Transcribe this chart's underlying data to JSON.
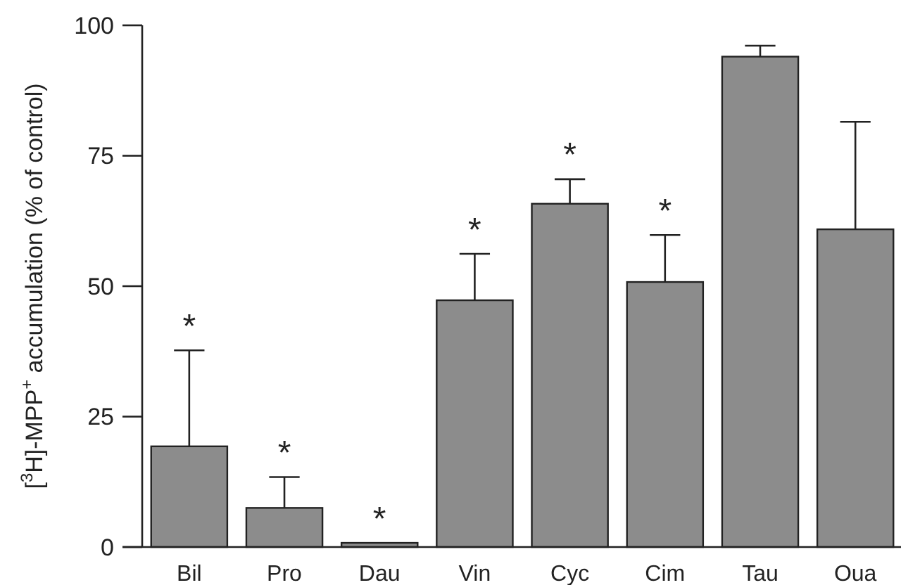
{
  "chart_data": {
    "type": "bar",
    "ylabel": "[$^{3}$H]-MPP$^{+}$ accumulation (% of control)",
    "categories": [
      "Bil",
      "Pro",
      "Dau",
      "Vin",
      "Cyc",
      "Cim",
      "Tau",
      "Oua"
    ],
    "values": [
      19.3,
      7.5,
      0.8,
      47.3,
      65.8,
      50.8,
      94.0,
      60.9
    ],
    "errors": [
      [
        19.3,
        37.7
      ],
      [
        7.5,
        13.4
      ],
      null,
      [
        47.3,
        56.2
      ],
      [
        65.8,
        70.5
      ],
      [
        50.8,
        59.8
      ],
      [
        94.0,
        96.1
      ],
      [
        60.9,
        81.5
      ]
    ],
    "color": "#8c8c8c",
    "ylim": [
      0,
      100
    ],
    "yticks": [
      0,
      25,
      50,
      75,
      100
    ],
    "grid": false,
    "annotations": [
      {
        "text": "*",
        "x": "Bil",
        "y": 37.7
      },
      {
        "text": "*",
        "x": "Pro",
        "y": 13.4
      },
      {
        "text": "*",
        "x": "Dau",
        "y": 0.8
      },
      {
        "text": "*",
        "x": "Vin",
        "y": 56.2
      },
      {
        "text": "*",
        "x": "Cyc",
        "y": 70.5
      },
      {
        "text": "*",
        "x": "Cim",
        "y": 59.8
      }
    ]
  }
}
